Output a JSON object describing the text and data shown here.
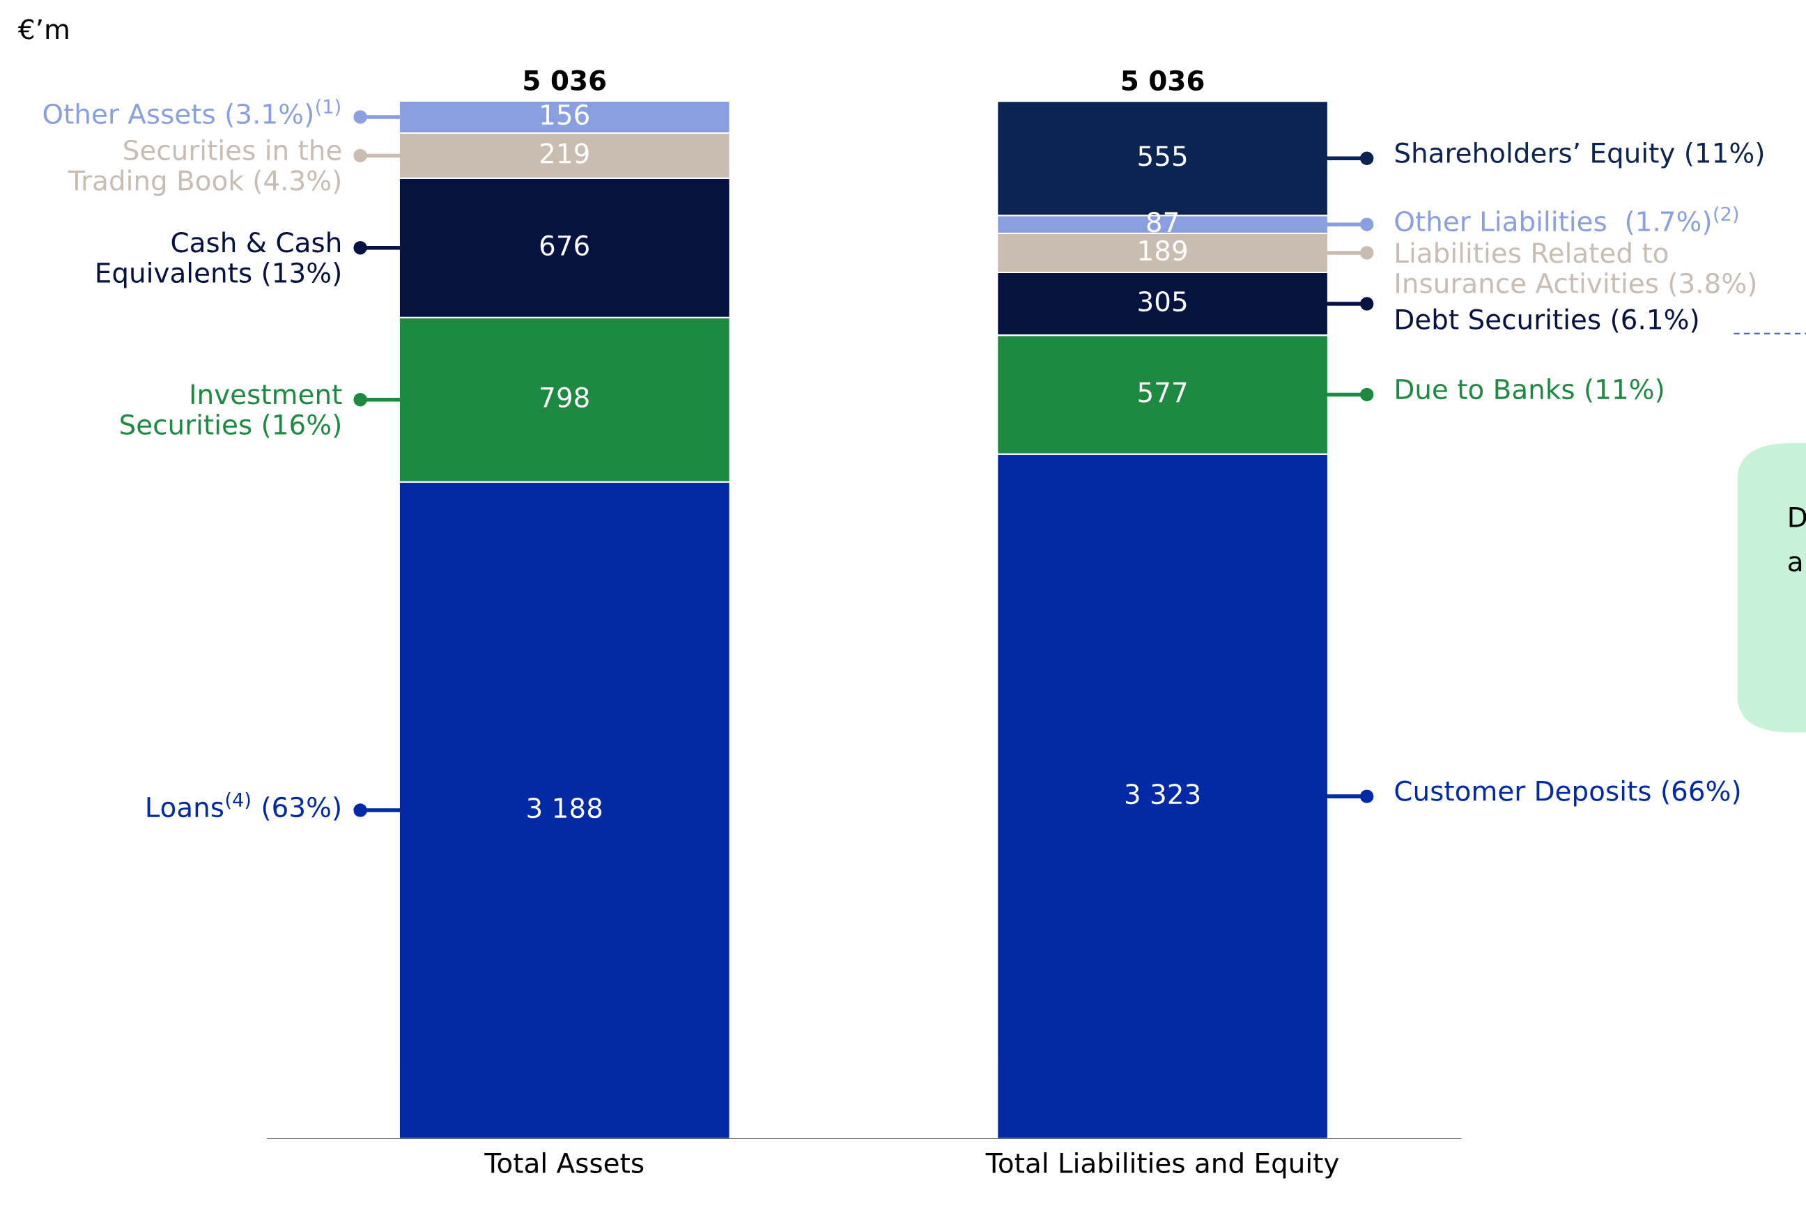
{
  "chart_data": {
    "type": "bar",
    "stacked": true,
    "tick_labels": "x",
    "legend": "right",
    "grid": false,
    "categories": [
      "Total Assets",
      "Total Liabilities and Equity"
    ],
    "series": [
      {
        "name": "Loans$^{(4)}$ (63%)",
        "color": "#0229a6",
        "values": [
          3188,
          null
        ],
        "value_labels": [
          "3 188",
          null
        ]
      },
      {
        "name": "Customer Deposits (66%)",
        "color": "#0229a6",
        "values": [
          null,
          3323
        ],
        "value_labels": [
          null,
          "3 323"
        ]
      },
      {
        "name": "Investment\nSecurities (16%)",
        "color": "#1e8a41",
        "values": [
          798,
          null
        ],
        "value_labels": [
          "798",
          null
        ]
      },
      {
        "name": "Due to Banks (11%)",
        "color": "#1e8a41",
        "values": [
          null,
          577
        ],
        "value_labels": [
          null,
          "577"
        ]
      },
      {
        "name": "Cash & Cash\nEquivalents (13%)",
        "color": "#061340",
        "values": [
          676,
          null
        ],
        "value_labels": [
          "676",
          null
        ]
      },
      {
        "name": "Debt Securities (6.1%)",
        "color": "#061340",
        "values": [
          null,
          305
        ],
        "value_labels": [
          null,
          "305"
        ]
      },
      {
        "name": "Securities in the\nTrading Book (4.3%)",
        "color": "#c9bcb0",
        "values": [
          219,
          null
        ],
        "value_labels": [
          "219",
          null
        ]
      },
      {
        "name": "Liabilities Related to\nInsurance Activities (3.8%)",
        "color": "#c9bcb0",
        "values": [
          null,
          189
        ],
        "value_labels": [
          null,
          "189"
        ]
      },
      {
        "name": "Other Assets (3.1%)$^{(1)}$",
        "color": "#8a9fe0",
        "values": [
          156,
          null
        ],
        "value_labels": [
          "156",
          null
        ]
      },
      {
        "name": "Other Liabilities  (1.7%)$^{(2)}$",
        "color": "#8a9fe0",
        "values": [
          null,
          87
        ],
        "value_labels": [
          null,
          "87"
        ]
      },
      {
        "name": "Shareholders’ Equity (11%)",
        "color": "#0c2452",
        "values": [
          null,
          555
        ],
        "value_labels": [
          null,
          "555"
        ]
      }
    ],
    "totals": [
      "5 036",
      "5 036"
    ],
    "annotations": [
      "€’m",
      "D",
      "a"
    ]
  }
}
